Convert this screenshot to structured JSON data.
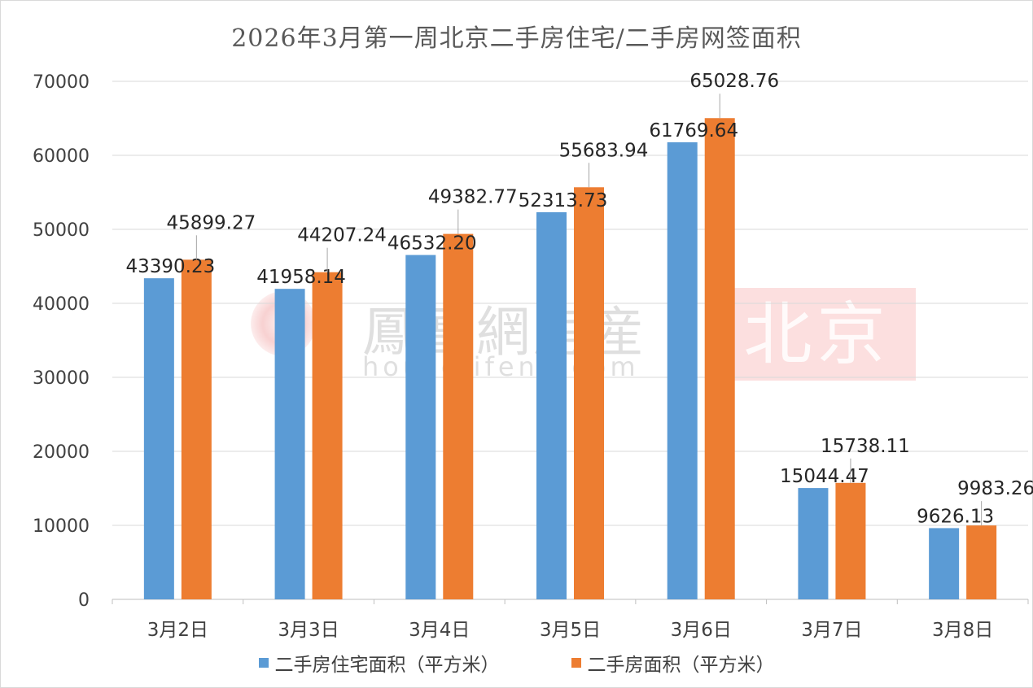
{
  "chart_data": {
    "type": "bar",
    "title": "2026年3月第一周北京二手房住宅/二手房网签面积",
    "categories": [
      "3月2日",
      "3月3日",
      "3月4日",
      "3月5日",
      "3月6日",
      "3月7日",
      "3月8日"
    ],
    "series": [
      {
        "name": "二手房住宅面积（平方米）",
        "color": "#5b9bd5",
        "values": [
          43390.23,
          41958.14,
          46532.2,
          52313.73,
          61769.64,
          15044.47,
          9626.13
        ],
        "labels": [
          "43390.23",
          "41958.14",
          "46532.20",
          "52313.73",
          "61769.64",
          "15044.47",
          "9626.13"
        ]
      },
      {
        "name": "二手房面积（平方米）",
        "color": "#ed7d31",
        "values": [
          45899.27,
          44207.24,
          49382.77,
          55683.94,
          65028.76,
          15738.11,
          9983.26
        ],
        "labels": [
          "45899.27",
          "44207.24",
          "49382.77",
          "55683.94",
          "65028.76",
          "15738.11",
          "9983.26"
        ]
      }
    ],
    "yticks": [
      "0",
      "10000",
      "20000",
      "30000",
      "40000",
      "50000",
      "60000",
      "70000"
    ],
    "ylim": [
      0,
      70000
    ],
    "grid": true,
    "legend": "bottom-center"
  },
  "watermark": {
    "brand": "鳳凰網房産",
    "url": "house.ifeng.com",
    "city": "北京"
  }
}
